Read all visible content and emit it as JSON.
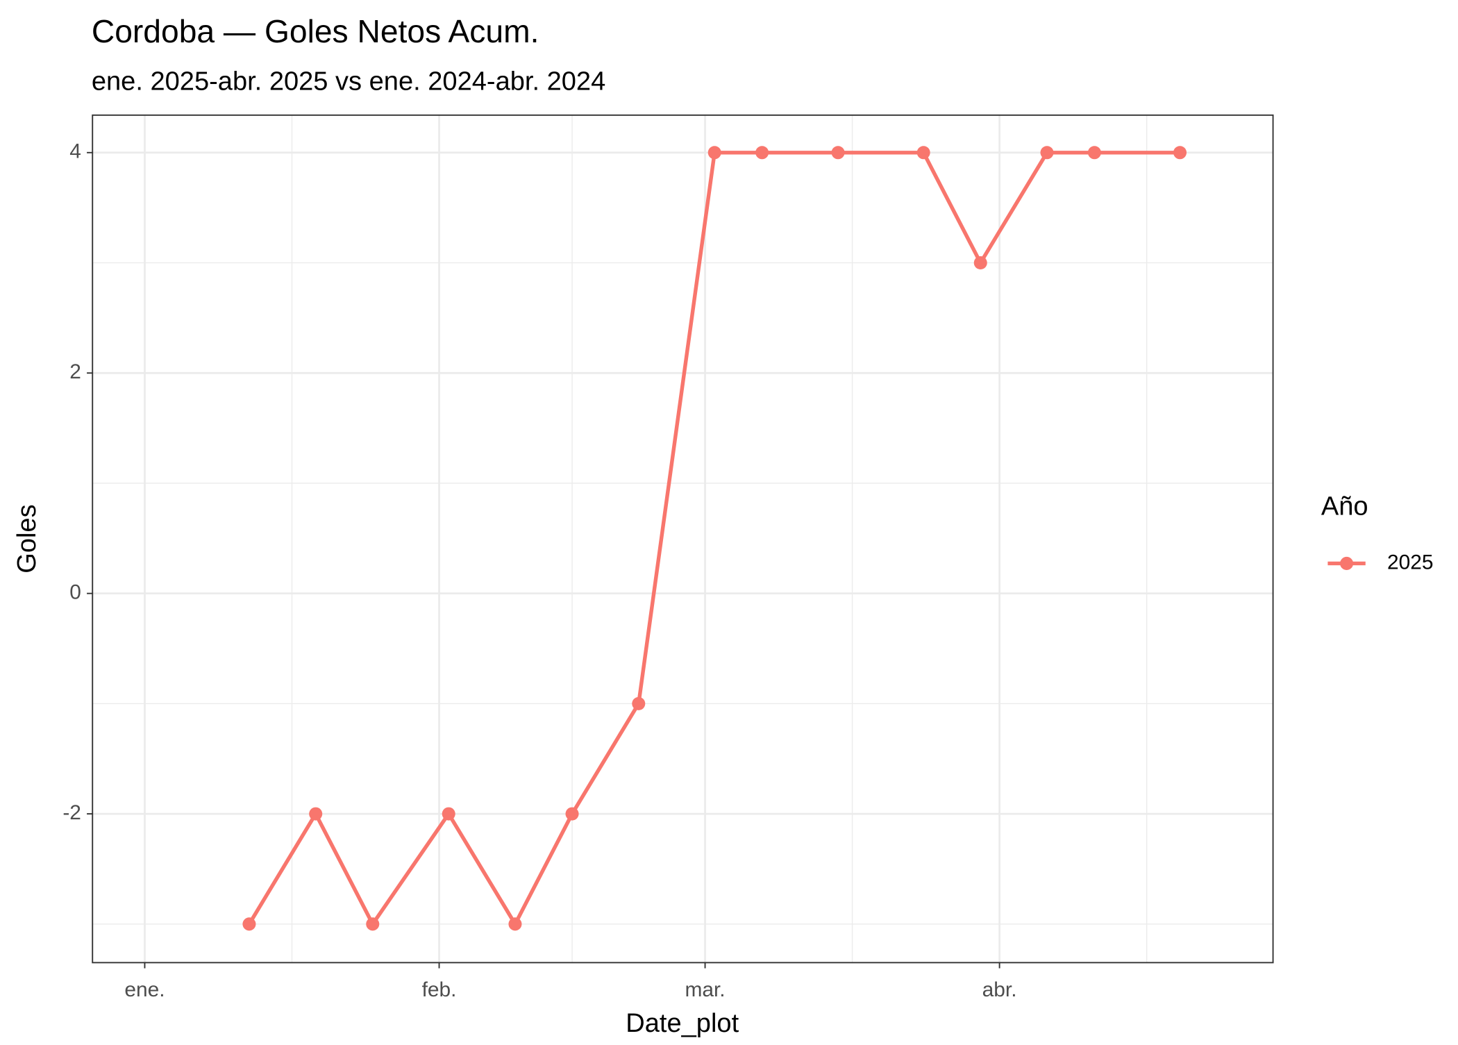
{
  "chart_data": {
    "type": "line",
    "title": "Cordoba — Goles Netos Acum.",
    "subtitle": "ene. 2025-abr. 2025 vs ene. 2024-abr. 2024",
    "x_label": "Date_plot",
    "y_label": "Goles",
    "legend_title": "Año",
    "x": [
      12,
      19,
      25,
      33,
      40,
      46,
      53,
      61,
      66,
      74,
      83,
      89,
      96,
      101,
      110
    ],
    "series": [
      {
        "name": "2025",
        "color": "#F8766D",
        "values": [
          -3,
          -2,
          -3,
          -2,
          -3,
          -2,
          -1,
          4,
          4,
          4,
          4,
          3,
          4,
          4,
          4
        ]
      }
    ],
    "xlim": [
      -4.5,
      119.8
    ],
    "ylim": [
      -3.35,
      4.34
    ],
    "xticks": [
      {
        "value": 1,
        "label": "ene."
      },
      {
        "value": 32,
        "label": "feb."
      },
      {
        "value": 60,
        "label": "mar."
      },
      {
        "value": 91,
        "label": "abr."
      }
    ],
    "yticks": [
      -2,
      0,
      2,
      4
    ],
    "grid": true,
    "legend_position": "right"
  }
}
